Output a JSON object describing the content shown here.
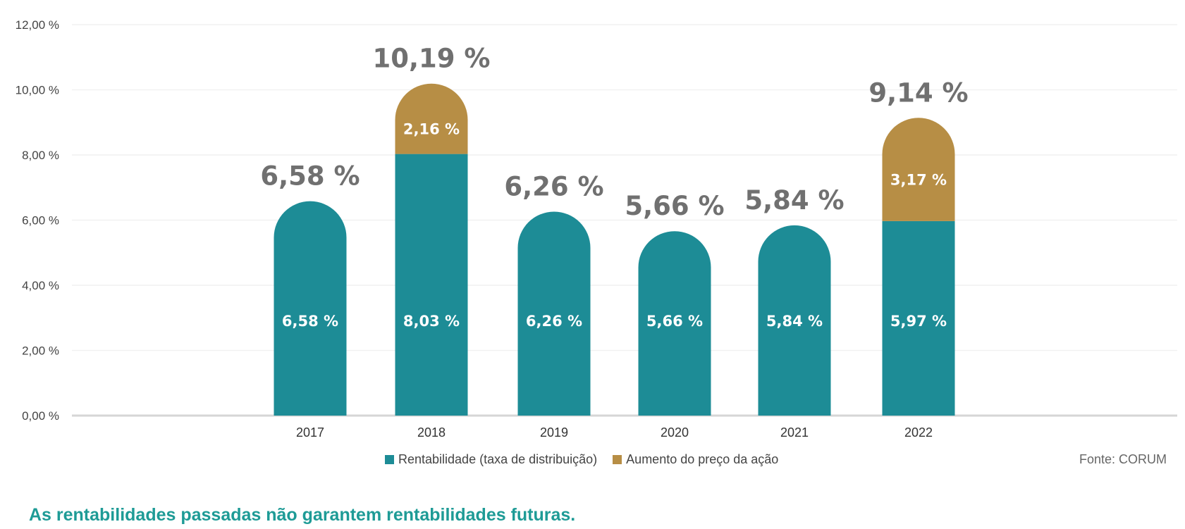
{
  "chart_data": {
    "type": "bar",
    "stacked": true,
    "categories": [
      "2017",
      "2018",
      "2019",
      "2020",
      "2021",
      "2022"
    ],
    "series": [
      {
        "name": "Rentabilidade (taxa de distribuição)",
        "values": [
          6.58,
          8.03,
          6.26,
          5.66,
          5.84,
          5.97
        ],
        "labels": [
          "6,58 %",
          "8,03 %",
          "6,26 %",
          "5,66 %",
          "5,84 %",
          "5,97 %"
        ],
        "color": "#1d8c96"
      },
      {
        "name": "Aumento do preço da ação",
        "values": [
          0,
          2.16,
          0,
          0,
          0,
          3.17
        ],
        "labels": [
          "",
          "2,16 %",
          "",
          "",
          "",
          "3,17 %"
        ],
        "color": "#b78e45"
      }
    ],
    "totals": [
      6.58,
      10.19,
      6.26,
      5.66,
      5.84,
      9.14
    ],
    "total_labels": [
      "6,58 %",
      "10,19 %",
      "6,26 %",
      "5,66 %",
      "5,84 %",
      "9,14 %"
    ],
    "ylim": [
      0,
      12
    ],
    "yticks": [
      0,
      2,
      4,
      6,
      8,
      10,
      12
    ],
    "ytick_labels": [
      "0,00 %",
      "2,00 %",
      "4,00 %",
      "6,00 %",
      "8,00 %",
      "10,00 %",
      "12,00 %"
    ],
    "grid": true,
    "legend_position": "bottom",
    "xlabel": "",
    "ylabel": ""
  },
  "legend": {
    "items": [
      {
        "label": "Rentabilidade (taxa de distribuição)",
        "color": "#1d8c96"
      },
      {
        "label": "Aumento do preço da ação",
        "color": "#b78e45"
      }
    ]
  },
  "source": "Fonte: CORUM",
  "footnote": "As rentabilidades passadas não garantem rentabilidades futuras."
}
